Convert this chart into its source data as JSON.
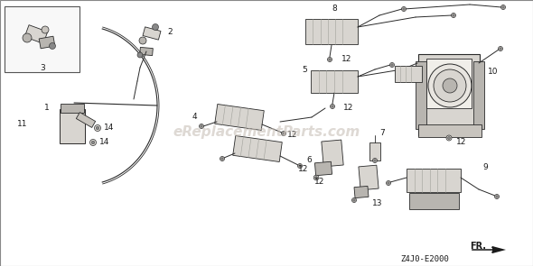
{
  "bg_color": "#ffffff",
  "border_color": "#aaaaaa",
  "watermark": "eReplacementParts.com",
  "watermark_color": "#c8c0b8",
  "diagram_code": "Z4J0-E2000",
  "fr_label": "FR.",
  "line_color": "#2a2a2a",
  "text_color": "#1a1a1a",
  "label_fontsize": 6.5,
  "watermark_fontsize": 11,
  "code_fontsize": 6,
  "part_color": "#c8c4be",
  "part_color2": "#d8d5d0",
  "part_color3": "#b8b5b0",
  "shadow_color": "#a0a09a"
}
